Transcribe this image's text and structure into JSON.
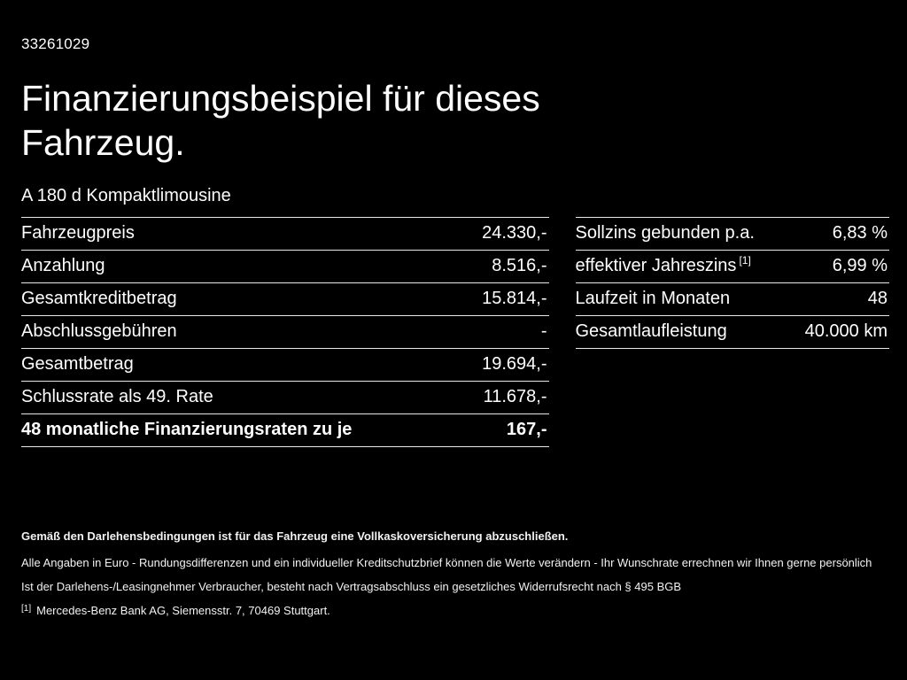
{
  "page": {
    "id_number": "33261029",
    "title": "Finanzierungsbeispiel für dieses Fahrzeug.",
    "subtitle": "A 180 d Kompaktlimousine"
  },
  "left_table": {
    "rows": [
      {
        "label": "Fahrzeugpreis",
        "value": "24.330,-"
      },
      {
        "label": "Anzahlung",
        "value": "8.516,-"
      },
      {
        "label": "Gesamtkreditbetrag",
        "value": "15.814,-"
      },
      {
        "label": "Abschlussgebühren",
        "value": "-"
      },
      {
        "label": "Gesamtbetrag",
        "value": "19.694,-"
      },
      {
        "label": "Schlussrate als 49. Rate",
        "value": "11.678,-"
      },
      {
        "label": "48 monatliche Finanzierungsraten zu je",
        "value": "167,-"
      }
    ]
  },
  "right_table": {
    "rows": [
      {
        "label": "Sollzins gebunden p.a.",
        "value": "6,83 %"
      },
      {
        "label": "effektiver Jahreszins",
        "note": "[1]",
        "value": "6,99 %"
      },
      {
        "label": "Laufzeit in Monaten",
        "value": "48"
      },
      {
        "label": "Gesamtlaufleistung",
        "value": "40.000 km"
      }
    ]
  },
  "footer": {
    "line1": "Gemäß den Darlehensbedingungen ist für das Fahrzeug eine Vollkaskoversicherung abzuschließen.",
    "line2": "Alle Angaben in Euro - Rundungsdifferenzen und ein individueller Kreditschutzbrief können die Werte verändern - Ihr Wunschrate errechnen wir Ihnen gerne persönlich",
    "line3": "Ist der Darlehens-/Leasingnehmer Verbraucher, besteht nach Vertragsabschluss ein gesetzliches Widerrufsrecht nach § 495 BGB",
    "footnote_marker": "[1]",
    "footnote_text": "Mercedes-Benz Bank AG, Siemensstr. 7, 70469 Stuttgart."
  },
  "colors": {
    "background": "#000000",
    "text": "#fdfdfd",
    "divider": "#e9e9e9"
  }
}
